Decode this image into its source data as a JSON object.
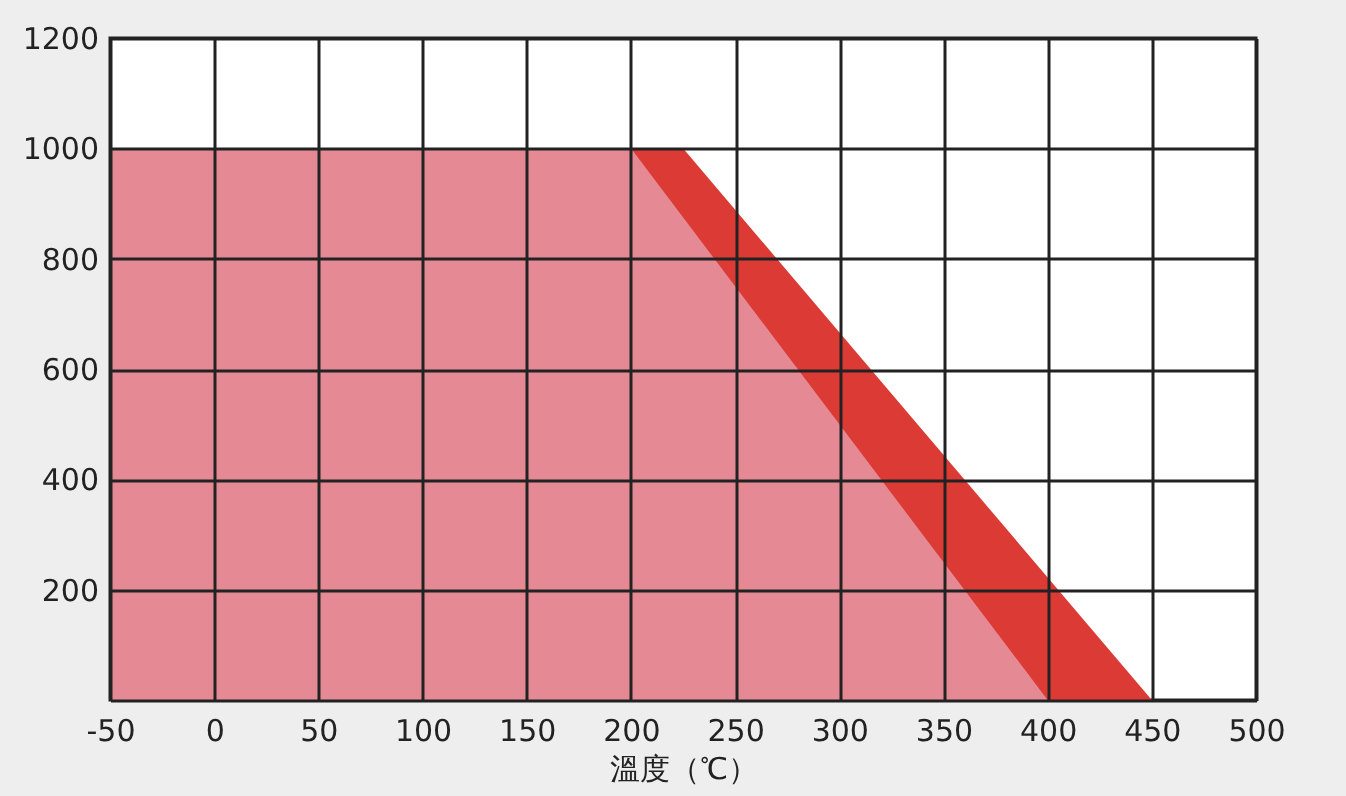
{
  "chart_data": {
    "type": "area",
    "xlabel": "溫度（℃）",
    "series": [
      {
        "color": "#dc3a34",
        "x": [
          -50,
          225,
          450
        ],
        "values": [
          1000,
          1000,
          0
        ]
      },
      {
        "color": "#e58a95",
        "x": [
          -50,
          200,
          400
        ],
        "values": [
          1000,
          1000,
          0
        ]
      }
    ],
    "xlim": [
      -50,
      500
    ],
    "xticks": [
      -50,
      0,
      50,
      100,
      150,
      200,
      250,
      300,
      350,
      400,
      450,
      500
    ],
    "ylim": [
      0,
      1200
    ],
    "yticks": [
      {
        "value": 0,
        "label": null
      },
      200,
      400,
      600,
      800,
      1000,
      1200
    ],
    "grid": true
  }
}
